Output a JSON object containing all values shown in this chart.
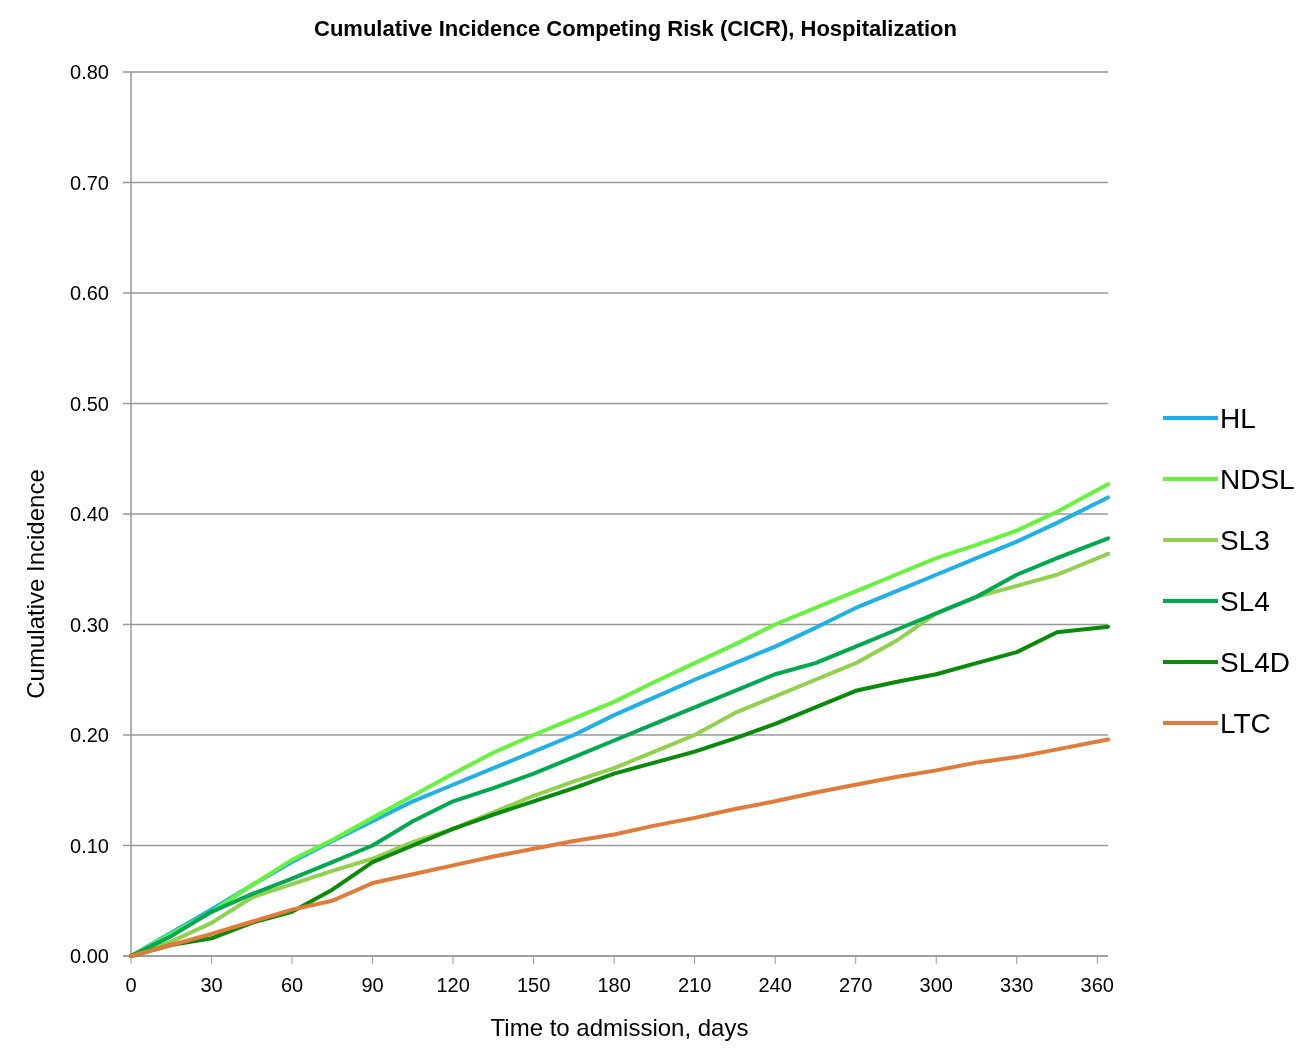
{
  "chart_data": {
    "type": "line",
    "title": "Cumulative Incidence Competing Risk (CICR), Hospitalization",
    "xlabel": "Time to admission, days",
    "ylabel": "Cumulative Incidence",
    "x": [
      0,
      15,
      30,
      45,
      60,
      75,
      90,
      105,
      120,
      135,
      150,
      165,
      180,
      195,
      210,
      225,
      240,
      255,
      270,
      285,
      300,
      315,
      330,
      345,
      364
    ],
    "series": [
      {
        "name": "HL",
        "color": "#1fb0e6",
        "values": [
          0,
          0.021,
          0.042,
          0.064,
          0.085,
          0.104,
          0.122,
          0.14,
          0.155,
          0.17,
          0.185,
          0.2,
          0.218,
          0.234,
          0.25,
          0.265,
          0.28,
          0.297,
          0.315,
          0.33,
          0.345,
          0.36,
          0.375,
          0.392,
          0.415
        ]
      },
      {
        "name": "NDSL",
        "color": "#66f23f",
        "values": [
          0,
          0.02,
          0.04,
          0.064,
          0.087,
          0.105,
          0.125,
          0.145,
          0.165,
          0.184,
          0.2,
          0.215,
          0.23,
          0.248,
          0.265,
          0.282,
          0.3,
          0.315,
          0.33,
          0.345,
          0.36,
          0.372,
          0.385,
          0.402,
          0.427
        ]
      },
      {
        "name": "SL3",
        "color": "#92d050",
        "values": [
          0,
          0.013,
          0.03,
          0.053,
          0.065,
          0.077,
          0.088,
          0.103,
          0.115,
          0.13,
          0.145,
          0.158,
          0.17,
          0.185,
          0.2,
          0.22,
          0.235,
          0.25,
          0.265,
          0.285,
          0.31,
          0.325,
          0.335,
          0.345,
          0.364
        ]
      },
      {
        "name": "SL4",
        "color": "#00a94f",
        "values": [
          0,
          0.018,
          0.04,
          0.056,
          0.07,
          0.085,
          0.1,
          0.122,
          0.14,
          0.152,
          0.165,
          0.18,
          0.195,
          0.21,
          0.225,
          0.24,
          0.255,
          0.265,
          0.28,
          0.295,
          0.31,
          0.325,
          0.345,
          0.36,
          0.378
        ]
      },
      {
        "name": "SL4D",
        "color": "#0a8a0a",
        "values": [
          0,
          0.01,
          0.016,
          0.03,
          0.04,
          0.06,
          0.085,
          0.1,
          0.115,
          0.128,
          0.14,
          0.152,
          0.165,
          0.175,
          0.185,
          0.197,
          0.21,
          0.225,
          0.24,
          0.248,
          0.255,
          0.265,
          0.275,
          0.293,
          0.298
        ]
      },
      {
        "name": "LTC",
        "color": "#e07b39",
        "values": [
          0,
          0.01,
          0.02,
          0.031,
          0.042,
          0.05,
          0.066,
          0.074,
          0.082,
          0.09,
          0.097,
          0.104,
          0.11,
          0.118,
          0.125,
          0.133,
          0.14,
          0.148,
          0.155,
          0.162,
          0.168,
          0.175,
          0.18,
          0.187,
          0.196
        ]
      }
    ],
    "xlim": [
      0,
      364
    ],
    "xticks": [
      0,
      30,
      60,
      90,
      120,
      150,
      180,
      210,
      240,
      270,
      300,
      330,
      360
    ],
    "ylim": [
      0,
      0.8
    ],
    "yticks": [
      {
        "value": 0,
        "label": "0.00"
      },
      {
        "value": 0.1,
        "label": "0.10"
      },
      {
        "value": 0.2,
        "label": "0.20"
      },
      {
        "value": 0.3,
        "label": "0.30"
      },
      {
        "value": 0.4,
        "label": "0.40"
      },
      {
        "value": 0.5,
        "label": "0.50"
      },
      {
        "value": 0.6,
        "label": "0.60"
      },
      {
        "value": 0.7,
        "label": "0.70"
      },
      {
        "value": 0.8,
        "label": "0.80"
      }
    ],
    "grid": "y",
    "legend": "right",
    "marker": "none",
    "line_style": "solid"
  }
}
